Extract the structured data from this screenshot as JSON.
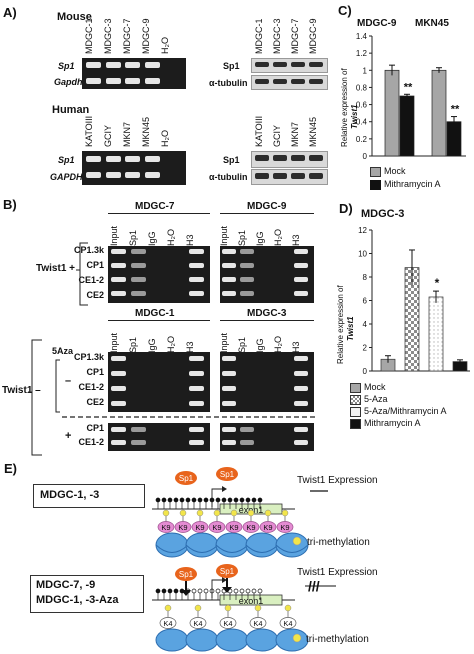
{
  "panel_a": {
    "label": "A)",
    "mouse_title": "Mouse",
    "human_title": "Human",
    "mouse_lanes": [
      "MDGC-1",
      "MDGC-3",
      "MDGC-7",
      "MDGC-9",
      "H₂O"
    ],
    "mouse_wb_lanes": [
      "MDGC-1",
      "MDGC-3",
      "MDGC-7",
      "MDGC-9"
    ],
    "human_lanes": [
      "KATOIII",
      "GCIY",
      "MKN7",
      "MKN45",
      "H₂O"
    ],
    "human_wb_lanes": [
      "KATOIII",
      "GCIY",
      "MKN7",
      "MKN45"
    ],
    "mouse_rows": [
      "Sp1",
      "Gapdh"
    ],
    "human_rows": [
      "Sp1",
      "GAPDH"
    ],
    "wb_rows": [
      "Sp1",
      "α-tubulin"
    ]
  },
  "panel_b": {
    "label": "B)",
    "top_titles": [
      "MDGC-7",
      "MDGC-9"
    ],
    "bottom_titles": [
      "MDGC-1",
      "MDGC-3"
    ],
    "lanes_left": [
      "Input",
      "Sp1",
      "IgG",
      "H₂O",
      "H3"
    ],
    "lanes_right": [
      "Input",
      "Sp1",
      "IgG",
      "H₂O",
      "H3"
    ],
    "twist_plus": "Twist1 +",
    "twist_minus": "Twist1 –",
    "aza": "5Aza",
    "minus_sign": "–",
    "plus_sign": "+",
    "top_rows": [
      "CP1.3k",
      "CP1",
      "CE1-2",
      "CE2"
    ],
    "bottom_rows": [
      "CP1.3k",
      "CP1",
      "CE1-2",
      "CE2"
    ],
    "aza_rows": [
      "CP1",
      "CE1-2"
    ]
  },
  "panel_c": {
    "label": "C)",
    "group_labels": [
      "MDGC-9",
      "MKN45"
    ],
    "ylabel_line1": "Relative expression of",
    "ylabel_line2": "Twist1",
    "significance": [
      "**",
      "**"
    ],
    "legend": [
      "Mock",
      "Mithramycin A"
    ]
  },
  "panel_d": {
    "label": "D)",
    "title": "MDGC-3",
    "ylabel_line1": "Relative expression of",
    "ylabel_line2": "Twist1",
    "significance": "*",
    "legend": [
      "Mock",
      "5-Aza",
      "5-Aza/Mithramycin A",
      "Mithramycin A"
    ]
  },
  "panel_e": {
    "label": "E)",
    "box1": "MDGC-1, -3",
    "box2_line1": "MDGC-7, -9",
    "box2_line2": "MDGC-1, -3-Aza",
    "sp1": "Sp1",
    "exon": "exon1",
    "expr_title": "Twist1 Expression",
    "k9": "K9",
    "k4": "K4",
    "trimethylation": "tri-methylation"
  },
  "chart_data": [
    {
      "type": "bar",
      "categories": [
        "MDGC-9",
        "MKN45"
      ],
      "series": [
        {
          "name": "Mock",
          "values": [
            1.0,
            1.0
          ],
          "errors": [
            0.06,
            0.03
          ],
          "color": "#a6a6a6"
        },
        {
          "name": "Mithramycin A",
          "values": [
            0.7,
            0.4
          ],
          "errors": [
            0.02,
            0.06
          ],
          "color": "#111111"
        }
      ],
      "ylabel": "Relative expression of Twist1",
      "ylim": [
        0,
        1.4
      ],
      "yticks": [
        0,
        0.2,
        0.4,
        0.6,
        0.8,
        1.0,
        1.2,
        1.4
      ],
      "yticklabels": [
        "0",
        "0.2",
        "0.4",
        "0.6",
        "0.8",
        "1",
        "1.2",
        "1.4"
      ],
      "legend_position": "bottom"
    },
    {
      "type": "bar",
      "title": "MDGC-3",
      "categories": [
        "Mock",
        "5-Aza",
        "5-Aza/Mithramycin A",
        "Mithramycin A"
      ],
      "series": [
        {
          "name": "Relative expression",
          "values": [
            1.0,
            8.8,
            6.3,
            0.8
          ],
          "errors": [
            0.3,
            1.5,
            0.5,
            0.15
          ]
        }
      ],
      "fills": [
        "#a6a6a6",
        "checker",
        "dots",
        "#111111"
      ],
      "ylabel": "Relative expression of Twist1",
      "ylim": [
        0,
        12
      ],
      "yticks": [
        0,
        2,
        4,
        6,
        8,
        10,
        12
      ],
      "significance_index": 2,
      "legend_position": "bottom"
    }
  ]
}
